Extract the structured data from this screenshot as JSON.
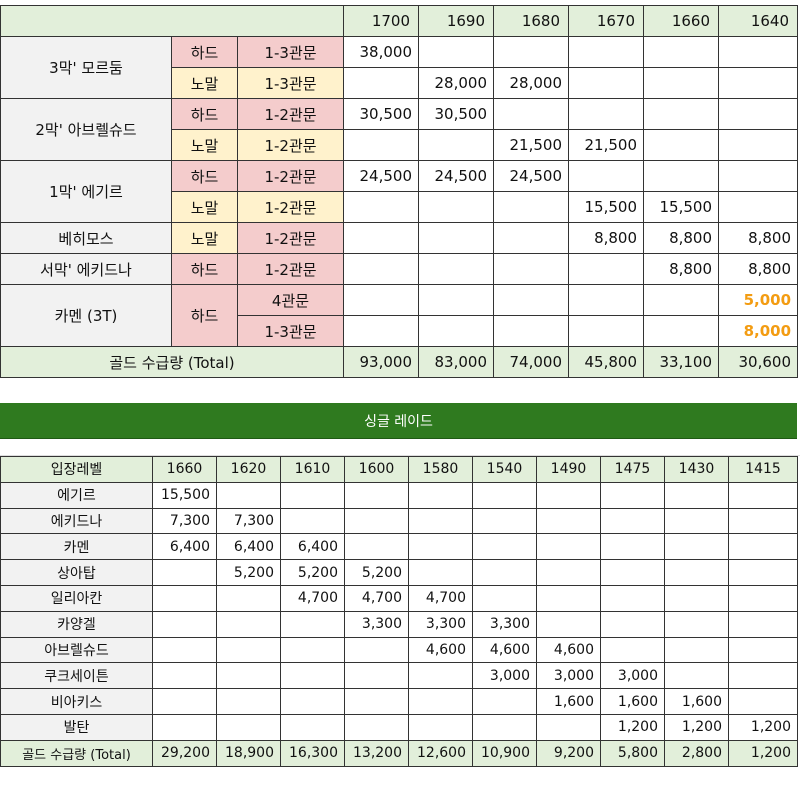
{
  "top": {
    "levels": [
      "1700",
      "1690",
      "1680",
      "1670",
      "1660",
      "1640"
    ],
    "rows": [
      {
        "raid": "3막' 모르둠",
        "difficulty": "하드",
        "gate": "1-3관문",
        "values": [
          "38,000",
          "",
          "",
          "",
          "",
          ""
        ]
      },
      {
        "raid": "",
        "difficulty": "노말",
        "gate": "1-3관문",
        "values": [
          "",
          "28,000",
          "28,000",
          "",
          "",
          ""
        ]
      },
      {
        "raid": "2막' 아브렐슈드",
        "difficulty": "하드",
        "gate": "1-2관문",
        "values": [
          "30,500",
          "30,500",
          "",
          "",
          "",
          ""
        ]
      },
      {
        "raid": "",
        "difficulty": "노말",
        "gate": "1-2관문",
        "values": [
          "",
          "",
          "21,500",
          "21,500",
          "",
          ""
        ]
      },
      {
        "raid": "1막' 에기르",
        "difficulty": "하드",
        "gate": "1-2관문",
        "values": [
          "24,500",
          "24,500",
          "24,500",
          "",
          "",
          ""
        ]
      },
      {
        "raid": "",
        "difficulty": "노말",
        "gate": "1-2관문",
        "values": [
          "",
          "",
          "",
          "15,500",
          "15,500",
          ""
        ]
      },
      {
        "raid": "베히모스",
        "difficulty": "노말",
        "gate": "1-2관문",
        "values": [
          "",
          "",
          "",
          "8,800",
          "8,800",
          "8,800"
        ]
      },
      {
        "raid": "서막' 에키드나",
        "difficulty": "하드",
        "gate": "1-2관문",
        "values": [
          "",
          "",
          "",
          "",
          "8,800",
          "8,800"
        ]
      },
      {
        "raid": "카멘 (3T)",
        "difficulty": "하드",
        "gate": "4관문",
        "values": [
          "",
          "",
          "",
          "",
          "",
          "5,000"
        ]
      },
      {
        "raid": "",
        "difficulty": "",
        "gate": "1-3관문",
        "values": [
          "",
          "",
          "",
          "",
          "",
          "8,000"
        ]
      }
    ],
    "total_label": "골드 수급량 (Total)",
    "totals": [
      "93,000",
      "83,000",
      "74,000",
      "45,800",
      "33,100",
      "30,600"
    ]
  },
  "banner": "싱글 레이드",
  "bottom": {
    "header_label": "입장레벨",
    "levels": [
      "1660",
      "1620",
      "1610",
      "1600",
      "1580",
      "1540",
      "1490",
      "1475",
      "1430",
      "1415"
    ],
    "rows": [
      {
        "name": "에기르",
        "values": [
          "15,500",
          "",
          "",
          "",
          "",
          "",
          "",
          "",
          "",
          ""
        ]
      },
      {
        "name": "에키드나",
        "values": [
          "7,300",
          "7,300",
          "",
          "",
          "",
          "",
          "",
          "",
          "",
          ""
        ]
      },
      {
        "name": "카멘",
        "values": [
          "6,400",
          "6,400",
          "6,400",
          "",
          "",
          "",
          "",
          "",
          "",
          ""
        ]
      },
      {
        "name": "상아탑",
        "values": [
          "",
          "5,200",
          "5,200",
          "5,200",
          "",
          "",
          "",
          "",
          "",
          ""
        ]
      },
      {
        "name": "일리아칸",
        "values": [
          "",
          "",
          "4,700",
          "4,700",
          "4,700",
          "",
          "",
          "",
          "",
          ""
        ]
      },
      {
        "name": "카양겔",
        "values": [
          "",
          "",
          "",
          "3,300",
          "3,300",
          "3,300",
          "",
          "",
          "",
          ""
        ]
      },
      {
        "name": "아브렐슈드",
        "values": [
          "",
          "",
          "",
          "",
          "4,600",
          "4,600",
          "4,600",
          "",
          "",
          ""
        ]
      },
      {
        "name": "쿠크세이튼",
        "values": [
          "",
          "",
          "",
          "",
          "",
          "3,000",
          "3,000",
          "3,000",
          "",
          ""
        ]
      },
      {
        "name": "비아키스",
        "values": [
          "",
          "",
          "",
          "",
          "",
          "",
          "1,600",
          "1,600",
          "1,600",
          ""
        ]
      },
      {
        "name": "발탄",
        "values": [
          "",
          "",
          "",
          "",
          "",
          "",
          "",
          "1,200",
          "1,200",
          "1,200"
        ]
      }
    ],
    "total_label": "골드 수급량 (Total)",
    "totals": [
      "29,200",
      "18,900",
      "16,300",
      "13,200",
      "12,600",
      "10,900",
      "9,200",
      "5,800",
      "2,800",
      "1,200"
    ]
  },
  "colors": {
    "green_header": "#e2efda",
    "banner_green": "#2f7a1f",
    "hard_pink": "#f4cccc",
    "normal_yellow": "#fff2cc",
    "highlight_orange": "#f39c12"
  }
}
